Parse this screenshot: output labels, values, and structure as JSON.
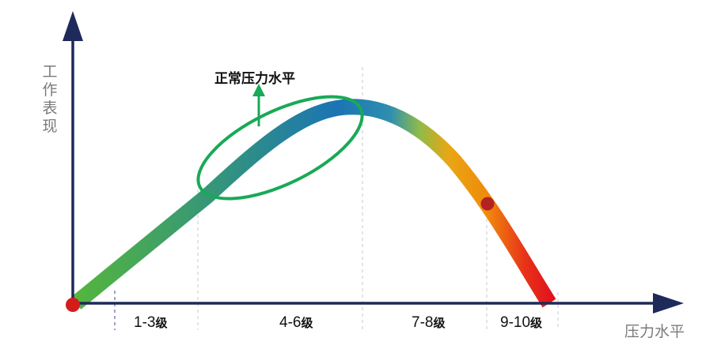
{
  "axes": {
    "y_label": "工作表现",
    "x_label": "压力水平",
    "colors": {
      "axis": "#1e2a5a",
      "label": "#7a7a7a"
    }
  },
  "callout": {
    "label": "正常压力水平",
    "color": "#19a957"
  },
  "zones": [
    {
      "range": "1-3",
      "unit": "级"
    },
    {
      "range": "4-6",
      "unit": "级"
    },
    {
      "range": "7-8",
      "unit": "级"
    },
    {
      "range": "9-10",
      "unit": "级"
    }
  ],
  "curve": {
    "gradient_colors": [
      "#55b63c",
      "#1f8aa8",
      "#1b6cb0",
      "#f0a20a",
      "#e8131b"
    ],
    "marker_colors": {
      "origin": "#d51c1c",
      "peak_drop": "#b22222"
    }
  }
}
